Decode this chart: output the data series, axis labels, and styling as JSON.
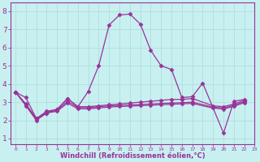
{
  "xlabel": "Windchill (Refroidissement éolien,°C)",
  "bg_color": "#c8f0f0",
  "grid_color": "#b0dede",
  "line_color": "#993399",
  "xlim": [
    -0.5,
    23
  ],
  "ylim": [
    0.7,
    8.5
  ],
  "yticks": [
    1,
    2,
    3,
    4,
    5,
    6,
    7,
    8
  ],
  "xtick_labels": [
    "0",
    "1",
    "2",
    "3",
    "4",
    "5",
    "6",
    "7",
    "8",
    "9",
    "10",
    "11",
    "12",
    "13",
    "14",
    "15",
    "16",
    "17",
    "18",
    "19",
    "20",
    "21",
    "22",
    "23"
  ],
  "series": [
    [
      3.55,
      3.25,
      2.1,
      2.4,
      2.6,
      3.2,
      2.75,
      3.6,
      5.0,
      7.25,
      7.8,
      7.85,
      7.3,
      5.85,
      5.0,
      4.8,
      3.25,
      3.3,
      4.05,
      1.3,
      3.05,
      3.15
    ],
    [
      3.55,
      2.9,
      2.1,
      2.5,
      2.6,
      3.2,
      2.75,
      2.75,
      2.8,
      2.85,
      2.9,
      2.95,
      3.0,
      3.05,
      3.1,
      3.15,
      3.15,
      3.2,
      2.8,
      2.75,
      2.9,
      3.1
    ],
    [
      3.55,
      2.85,
      2.05,
      2.45,
      2.55,
      3.05,
      2.7,
      2.7,
      2.75,
      2.8,
      2.82,
      2.85,
      2.87,
      2.9,
      2.93,
      2.95,
      2.97,
      3.0,
      2.73,
      2.68,
      2.83,
      3.03
    ],
    [
      3.55,
      2.8,
      2.0,
      2.4,
      2.5,
      2.95,
      2.63,
      2.63,
      2.68,
      2.73,
      2.76,
      2.78,
      2.81,
      2.83,
      2.86,
      2.88,
      2.91,
      2.93,
      2.67,
      2.62,
      2.77,
      2.97
    ]
  ],
  "series_x": [
    [
      0,
      1,
      2,
      3,
      4,
      5,
      6,
      7,
      8,
      9,
      10,
      11,
      12,
      13,
      14,
      15,
      16,
      17,
      18,
      20,
      21,
      22
    ],
    [
      0,
      1,
      2,
      3,
      4,
      5,
      6,
      7,
      8,
      9,
      10,
      11,
      12,
      13,
      14,
      15,
      16,
      17,
      19,
      20,
      21,
      22
    ],
    [
      0,
      1,
      2,
      3,
      4,
      5,
      6,
      7,
      8,
      9,
      10,
      11,
      12,
      13,
      14,
      15,
      16,
      17,
      19,
      20,
      21,
      22
    ],
    [
      0,
      1,
      2,
      3,
      4,
      5,
      6,
      7,
      8,
      9,
      10,
      11,
      12,
      13,
      14,
      15,
      16,
      17,
      19,
      20,
      21,
      22
    ]
  ],
  "marker": "D",
  "markersize": 2.5,
  "linewidth": 0.9
}
